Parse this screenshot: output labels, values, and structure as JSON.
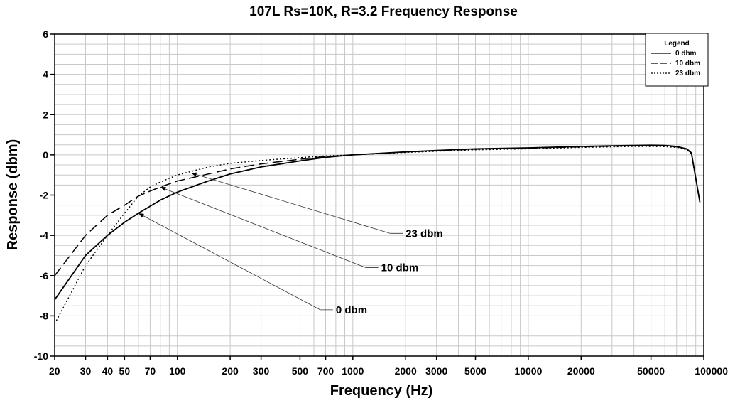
{
  "chart_data": {
    "type": "line",
    "title": "107L Rs=10K, R=3.2 Frequency Response",
    "xlabel": "Frequency (Hz)",
    "ylabel": "Response (dbm)",
    "xscale": "log",
    "xlim": [
      20,
      100000
    ],
    "ylim": [
      -10,
      6
    ],
    "grid": true,
    "x_tick_values": [
      20,
      30,
      40,
      50,
      70,
      100,
      200,
      300,
      500,
      700,
      1000,
      2000,
      3000,
      5000,
      10000,
      20000,
      50000,
      100000
    ],
    "x_tick_labels": [
      "20",
      "30",
      "40",
      "50",
      "70",
      "100",
      "200",
      "300",
      "500",
      "700",
      "1000",
      "2000",
      "3000",
      "5000",
      "10000",
      "20000",
      "50000",
      "100000"
    ],
    "y_tick_values": [
      -10,
      -8,
      -6,
      -4,
      -2,
      0,
      2,
      4,
      6
    ],
    "y_tick_labels": [
      "-10",
      "-8",
      "-6",
      "-4",
      "-2",
      "0",
      "2",
      "4",
      "6"
    ],
    "legend": {
      "title": "Legend",
      "position": "top-right",
      "entries": [
        "0 dbm",
        "10 dbm",
        "23 dbm"
      ]
    },
    "series": [
      {
        "name": "0 dbm",
        "style": "solid",
        "x": [
          20,
          30,
          40,
          50,
          60,
          70,
          80,
          100,
          150,
          200,
          300,
          500,
          700,
          1000,
          2000,
          3000,
          5000,
          10000,
          20000,
          30000,
          40000,
          50000,
          60000,
          70000,
          80000,
          85000,
          95000
        ],
        "y": [
          -7.2,
          -5.0,
          -4.0,
          -3.35,
          -2.9,
          -2.55,
          -2.25,
          -1.85,
          -1.3,
          -0.95,
          -0.6,
          -0.3,
          -0.12,
          0.0,
          0.15,
          0.22,
          0.3,
          0.35,
          0.42,
          0.45,
          0.47,
          0.48,
          0.47,
          0.42,
          0.3,
          0.1,
          -2.35
        ]
      },
      {
        "name": "10 dbm",
        "style": "dashed",
        "x": [
          20,
          30,
          40,
          50,
          60,
          70,
          80,
          100,
          150,
          200,
          300,
          500,
          700,
          1000,
          2000,
          3000,
          5000,
          10000,
          20000,
          30000,
          40000,
          50000,
          60000,
          70000,
          80000,
          85000,
          95000
        ],
        "y": [
          -6.0,
          -4.0,
          -3.0,
          -2.5,
          -2.05,
          -1.8,
          -1.6,
          -1.3,
          -0.95,
          -0.7,
          -0.45,
          -0.22,
          -0.08,
          0.0,
          0.14,
          0.2,
          0.28,
          0.33,
          0.4,
          0.43,
          0.45,
          0.46,
          0.45,
          0.4,
          0.28,
          0.08,
          -2.35
        ]
      },
      {
        "name": "23 dbm",
        "style": "dotted",
        "x": [
          20,
          30,
          40,
          50,
          60,
          70,
          80,
          100,
          150,
          200,
          300,
          500,
          700,
          1000,
          2000,
          3000,
          5000,
          10000,
          20000,
          30000,
          40000,
          50000,
          60000,
          70000,
          80000,
          85000,
          95000
        ],
        "y": [
          -8.4,
          -5.5,
          -4.0,
          -2.9,
          -2.05,
          -1.6,
          -1.35,
          -1.0,
          -0.6,
          -0.42,
          -0.28,
          -0.14,
          -0.05,
          0.0,
          0.12,
          0.18,
          0.25,
          0.3,
          0.37,
          0.4,
          0.42,
          0.42,
          0.41,
          0.37,
          0.25,
          0.05,
          -2.35
        ]
      }
    ],
    "annotations": [
      {
        "label": "0 dbm",
        "points_to": {
          "x": 60,
          "y": -2.9
        },
        "text_anchor": {
          "x": 800,
          "y": -7.7
        }
      },
      {
        "label": "10 dbm",
        "points_to": {
          "x": 80,
          "y": -1.6
        },
        "text_anchor": {
          "x": 1450,
          "y": -5.6
        }
      },
      {
        "label": "23 dbm",
        "points_to": {
          "x": 120,
          "y": -0.9
        },
        "text_anchor": {
          "x": 2000,
          "y": -3.9
        }
      }
    ]
  }
}
